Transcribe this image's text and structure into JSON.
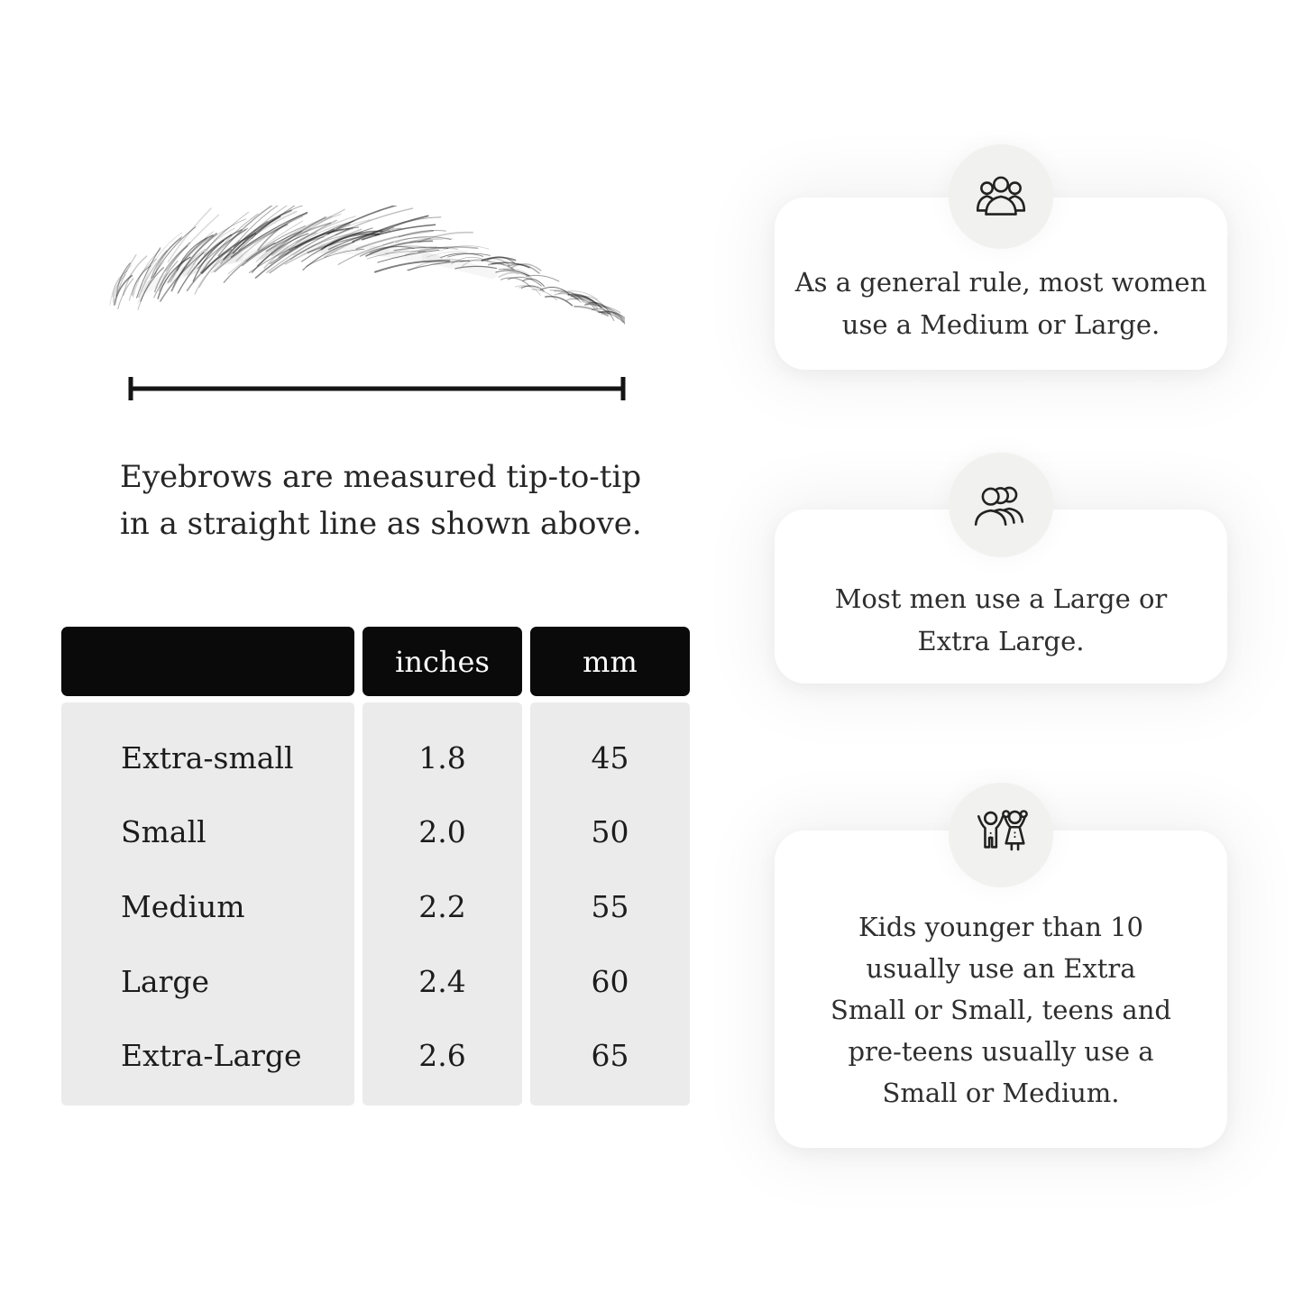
{
  "figure": {
    "caption_lines": [
      "Eyebrows are measured tip-to-tip",
      "in a straight line as shown above."
    ]
  },
  "table": {
    "headers": [
      "",
      "inches",
      "mm"
    ],
    "rows": [
      {
        "label": "Extra-small",
        "inches": "1.8",
        "mm": "45"
      },
      {
        "label": "Small",
        "inches": "2.0",
        "mm": "50"
      },
      {
        "label": "Medium",
        "inches": "2.2",
        "mm": "55"
      },
      {
        "label": "Large",
        "inches": "2.4",
        "mm": "60"
      },
      {
        "label": "Extra-Large",
        "inches": "2.6",
        "mm": "65"
      }
    ]
  },
  "cards": [
    {
      "icon": "women-group-icon",
      "lines": [
        "As a general rule, most women",
        "use a Medium or Large."
      ]
    },
    {
      "icon": "men-group-icon",
      "lines": [
        "Most men use a Large or",
        "Extra Large."
      ]
    },
    {
      "icon": "kids-icon",
      "lines": [
        "Kids younger than 10",
        "usually use an Extra",
        "Small or Small, teens and",
        "pre-teens usually use a",
        "Small or Medium."
      ]
    }
  ],
  "colors": {
    "background": "#ffffff",
    "table_header_bg": "#0a0a0a",
    "table_header_text": "#ffffff",
    "table_body_bg": "#ebebeb",
    "card_bg": "#ffffff",
    "icon_circle_bg": "#f1f1ef",
    "text": "#1e1e1e"
  }
}
